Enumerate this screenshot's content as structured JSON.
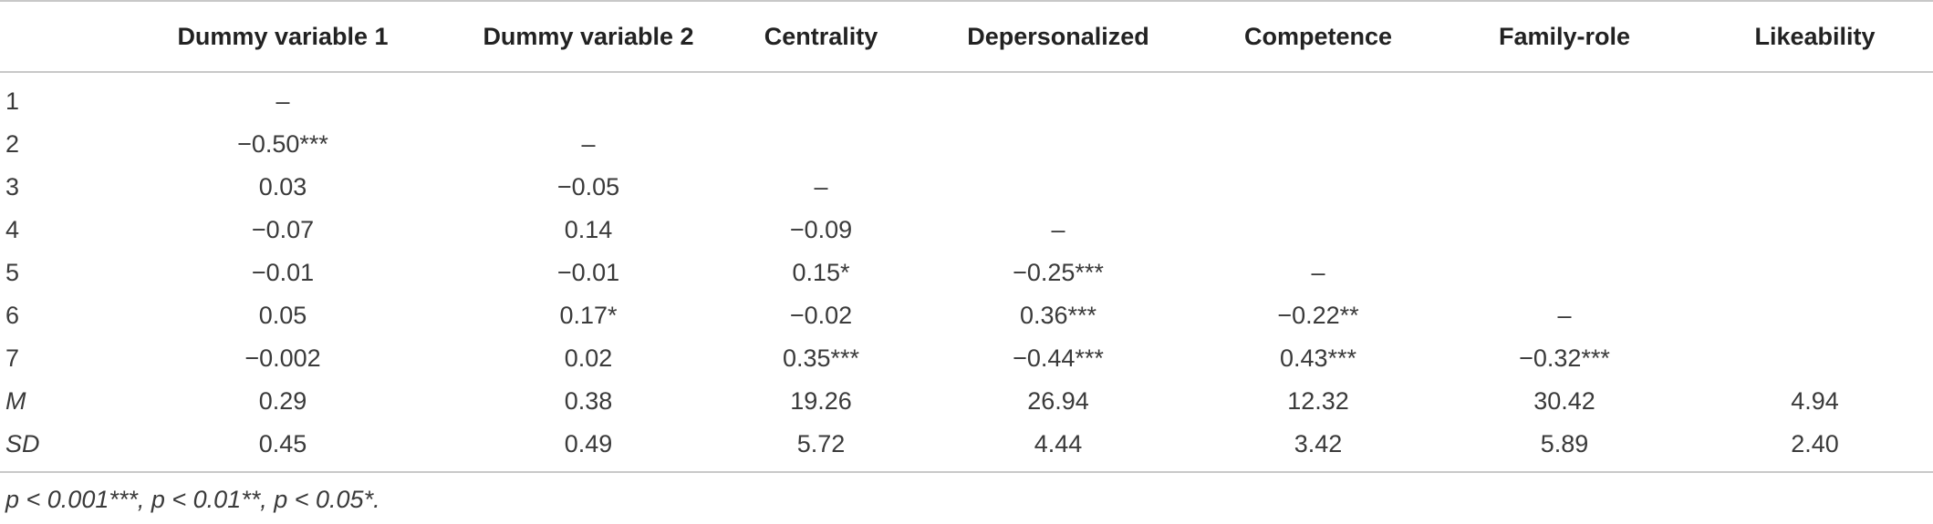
{
  "table": {
    "columns": [
      "",
      "Dummy variable 1",
      "Dummy variable 2",
      "Centrality",
      "Depersonalized",
      "Competence",
      "Family-role",
      "Likeability"
    ],
    "rows": [
      {
        "label": "1",
        "italic": false,
        "cells": [
          "–",
          "",
          "",
          "",
          "",
          "",
          ""
        ]
      },
      {
        "label": "2",
        "italic": false,
        "cells": [
          "−0.50***",
          "–",
          "",
          "",
          "",
          "",
          ""
        ]
      },
      {
        "label": "3",
        "italic": false,
        "cells": [
          "0.03",
          "−0.05",
          "–",
          "",
          "",
          "",
          ""
        ]
      },
      {
        "label": "4",
        "italic": false,
        "cells": [
          "−0.07",
          "0.14",
          "−0.09",
          "–",
          "",
          "",
          ""
        ]
      },
      {
        "label": "5",
        "italic": false,
        "cells": [
          "−0.01",
          "−0.01",
          "0.15*",
          "−0.25***",
          "–",
          "",
          ""
        ]
      },
      {
        "label": "6",
        "italic": false,
        "cells": [
          "0.05",
          "0.17*",
          "−0.02",
          "0.36***",
          "−0.22**",
          "–",
          ""
        ]
      },
      {
        "label": "7",
        "italic": false,
        "cells": [
          "−0.002",
          "0.02",
          "0.35***",
          "−0.44***",
          "0.43***",
          "−0.32***",
          ""
        ]
      },
      {
        "label": "M",
        "italic": true,
        "cells": [
          "0.29",
          "0.38",
          "19.26",
          "26.94",
          "12.32",
          "30.42",
          "4.94"
        ]
      },
      {
        "label": "SD",
        "italic": true,
        "cells": [
          "0.45",
          "0.49",
          "5.72",
          "4.44",
          "3.42",
          "5.89",
          "2.40"
        ]
      }
    ]
  },
  "note": "p < 0.001***, p < 0.01**, p < 0.05*."
}
